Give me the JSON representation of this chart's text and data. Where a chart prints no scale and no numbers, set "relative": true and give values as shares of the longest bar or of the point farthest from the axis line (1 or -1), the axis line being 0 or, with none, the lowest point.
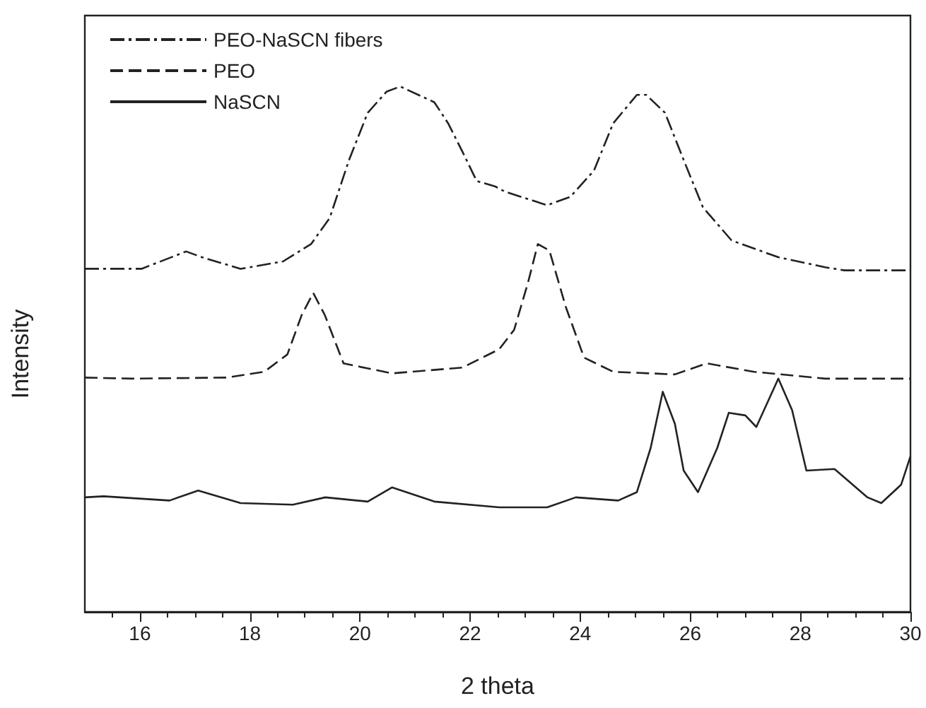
{
  "chart_data": {
    "type": "line",
    "xlabel": "2 theta",
    "ylabel": "Intensity",
    "relative": true,
    "xlim": [
      15,
      30
    ],
    "xticks": [
      {
        "value": 15.5,
        "label": null
      },
      16,
      {
        "value": 16.5,
        "label": null
      },
      {
        "value": 17,
        "label": null
      },
      {
        "value": 17.5,
        "label": null
      },
      18,
      {
        "value": 18.5,
        "label": null
      },
      {
        "value": 19,
        "label": null
      },
      {
        "value": 19.5,
        "label": null
      },
      20,
      {
        "value": 20.5,
        "label": null
      },
      {
        "value": 21,
        "label": null
      },
      {
        "value": 21.5,
        "label": null
      },
      22,
      {
        "value": 22.5,
        "label": null
      },
      {
        "value": 23,
        "label": null
      },
      {
        "value": 23.5,
        "label": null
      },
      24,
      {
        "value": 24.5,
        "label": null
      },
      {
        "value": 25,
        "label": null
      },
      {
        "value": 25.5,
        "label": null
      },
      26,
      {
        "value": 26.5,
        "label": null
      },
      {
        "value": 27,
        "label": null
      },
      {
        "value": 27.5,
        "label": null
      },
      28,
      {
        "value": 28.5,
        "label": null
      },
      {
        "value": 29,
        "label": null
      },
      {
        "value": 29.5,
        "label": null
      },
      30
    ],
    "tick_labels": "x",
    "grid": false,
    "legend": "top left",
    "marker": "none",
    "series": [
      {
        "name": "PEO-NaSCN fibers",
        "color": "#222222",
        "line_style": "dashdot",
        "x": [
          15,
          16.03,
          16.84,
          17.13,
          17.83,
          18.6,
          19.11,
          19.45,
          19.8,
          20.14,
          20.48,
          20.73,
          21.35,
          21.6,
          21.86,
          22.12,
          22.45,
          22.63,
          23.4,
          23.82,
          24.25,
          24.6,
          25.03,
          25.2,
          25.54,
          25.88,
          26.23,
          26.75,
          27.6,
          28.45,
          28.8,
          30
        ],
        "values": [
          0.653,
          0.653,
          0.686,
          0.675,
          0.653,
          0.667,
          0.7,
          0.75,
          0.86,
          0.95,
          0.99,
          1,
          0.97,
          0.93,
          0.876,
          0.82,
          0.81,
          0.8,
          0.774,
          0.79,
          0.84,
          0.93,
          0.984,
          0.984,
          0.95,
          0.86,
          0.77,
          0.707,
          0.675,
          0.656,
          0.65,
          0.65
        ]
      },
      {
        "name": "PEO",
        "color": "#222222",
        "line_style": "dashed",
        "x": [
          15,
          15.86,
          17.57,
          18.26,
          18.68,
          18.94,
          19.15,
          19.36,
          19.7,
          20.58,
          21.86,
          22.53,
          22.8,
          23.05,
          23.23,
          23.44,
          23.74,
          24.07,
          24.6,
          25.72,
          26.3,
          27.16,
          28.45,
          30
        ],
        "values": [
          0.446,
          0.444,
          0.446,
          0.457,
          0.49,
          0.565,
          0.607,
          0.565,
          0.473,
          0.454,
          0.465,
          0.5,
          0.537,
          0.626,
          0.7,
          0.688,
          0.58,
          0.484,
          0.457,
          0.452,
          0.473,
          0.457,
          0.444,
          0.444
        ]
      },
      {
        "name": "NaSCN",
        "color": "#222222",
        "line_style": "solid",
        "x": [
          15,
          15.34,
          16.54,
          17.06,
          17.83,
          18.78,
          19.37,
          20.14,
          20.58,
          21.35,
          22.53,
          23.4,
          23.92,
          24.69,
          25.03,
          25.28,
          25.5,
          25.72,
          25.88,
          26.14,
          26.49,
          26.7,
          27,
          27.2,
          27.6,
          27.85,
          28.11,
          28.62,
          29.22,
          29.47,
          29.83,
          30
        ],
        "values": [
          0.218,
          0.22,
          0.212,
          0.231,
          0.207,
          0.204,
          0.218,
          0.21,
          0.237,
          0.21,
          0.199,
          0.199,
          0.218,
          0.212,
          0.228,
          0.312,
          0.419,
          0.358,
          0.269,
          0.228,
          0.312,
          0.379,
          0.374,
          0.352,
          0.444,
          0.384,
          0.269,
          0.272,
          0.218,
          0.207,
          0.242,
          0.296
        ]
      }
    ]
  }
}
